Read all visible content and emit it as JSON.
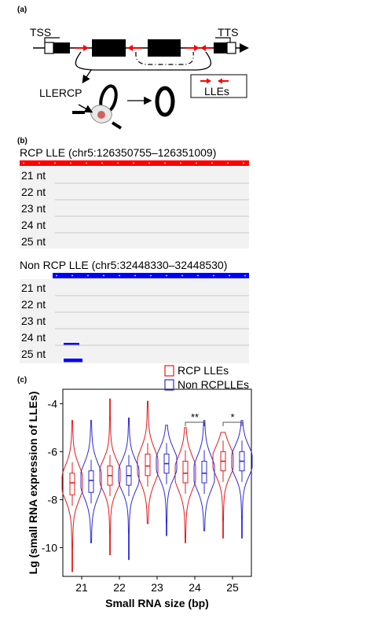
{
  "panel_a": {
    "label": "(a)",
    "tss": "TSS",
    "tts": "TTS",
    "llercp": "LLERCP",
    "legend": "LLEs"
  },
  "panel_b": {
    "label": "(b)",
    "track1_title": "RCP LLE (chr5:126350755–126351009)",
    "track2_title": "Non RCP LLE (chr5:32448330–32448530)",
    "rows": [
      "21 nt",
      "22 nt",
      "23 nt",
      "24 nt",
      "25 nt"
    ],
    "colors": {
      "rcp": "#ff0000",
      "non_rcp": "#0000ff"
    }
  },
  "panel_c": {
    "label": "(c)"
  },
  "chart_data": {
    "type": "violin",
    "xlabel": "Small RNA size (bp)",
    "ylabel": "Lg (small RNA expression of LLEs)",
    "categories": [
      "21",
      "22",
      "23",
      "24",
      "25"
    ],
    "yticks": [
      -4,
      -6,
      -8,
      -10
    ],
    "ylim": [
      -11.2,
      -3.4
    ],
    "legend": {
      "position": "top-right"
    },
    "significance": [
      {
        "category": "24",
        "label": "**"
      },
      {
        "category": "25",
        "label": "*"
      }
    ],
    "series": [
      {
        "name": "RCP LLEs",
        "color": "#e41a1c",
        "stats": [
          {
            "min": -11.0,
            "q1": -7.8,
            "median": -7.3,
            "q3": -6.9,
            "max": -4.7
          },
          {
            "min": -10.3,
            "q1": -7.4,
            "median": -7.0,
            "q3": -6.6,
            "max": -3.8
          },
          {
            "min": -9.0,
            "q1": -7.0,
            "median": -6.6,
            "q3": -6.1,
            "max": -3.9
          },
          {
            "min": -9.8,
            "q1": -7.3,
            "median": -6.9,
            "q3": -6.4,
            "max": -5.0
          },
          {
            "min": -9.6,
            "q1": -6.8,
            "median": -6.4,
            "q3": -6.0,
            "max": -5.2
          }
        ]
      },
      {
        "name": "Non RCPLLEs",
        "color": "#2b2bd9",
        "stats": [
          {
            "min": -9.8,
            "q1": -7.7,
            "median": -7.2,
            "q3": -6.8,
            "max": -4.7
          },
          {
            "min": -10.5,
            "q1": -7.4,
            "median": -7.0,
            "q3": -6.6,
            "max": -4.6
          },
          {
            "min": -9.5,
            "q1": -6.9,
            "median": -6.5,
            "q3": -6.1,
            "max": -4.9
          },
          {
            "min": -9.3,
            "q1": -7.3,
            "median": -6.9,
            "q3": -6.4,
            "max": -4.7
          },
          {
            "min": -9.6,
            "q1": -6.8,
            "median": -6.4,
            "q3": -6.0,
            "max": -4.7
          }
        ]
      }
    ]
  }
}
